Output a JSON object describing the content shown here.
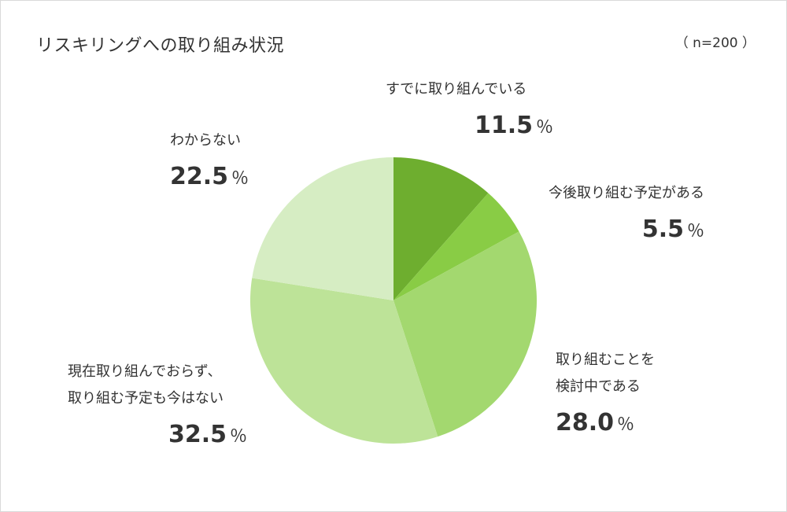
{
  "title": "リスキリングへの取り組み状況",
  "sample_size": "（ n=200 ）",
  "chart_data": {
    "type": "pie",
    "title": "リスキリングへの取り組み状況",
    "unit": "％",
    "slices": [
      {
        "name": "すでに取り組んでいる",
        "value": 11.5,
        "value_text": "11.5",
        "color": "#6eae2f"
      },
      {
        "name": "今後取り組む予定がある",
        "value": 5.5,
        "value_text": "5.5",
        "color": "#89cc45"
      },
      {
        "name": "取り組むことを\n検討中である",
        "value": 28.0,
        "value_text": "28.0",
        "color": "#a3d86f"
      },
      {
        "name": "現在取り組んでおらず、\n取り組む予定も今はない",
        "value": 32.5,
        "value_text": "32.5",
        "color": "#bde398"
      },
      {
        "name": "わからない",
        "value": 22.5,
        "value_text": "22.5",
        "color": "#d6edc3"
      }
    ]
  }
}
